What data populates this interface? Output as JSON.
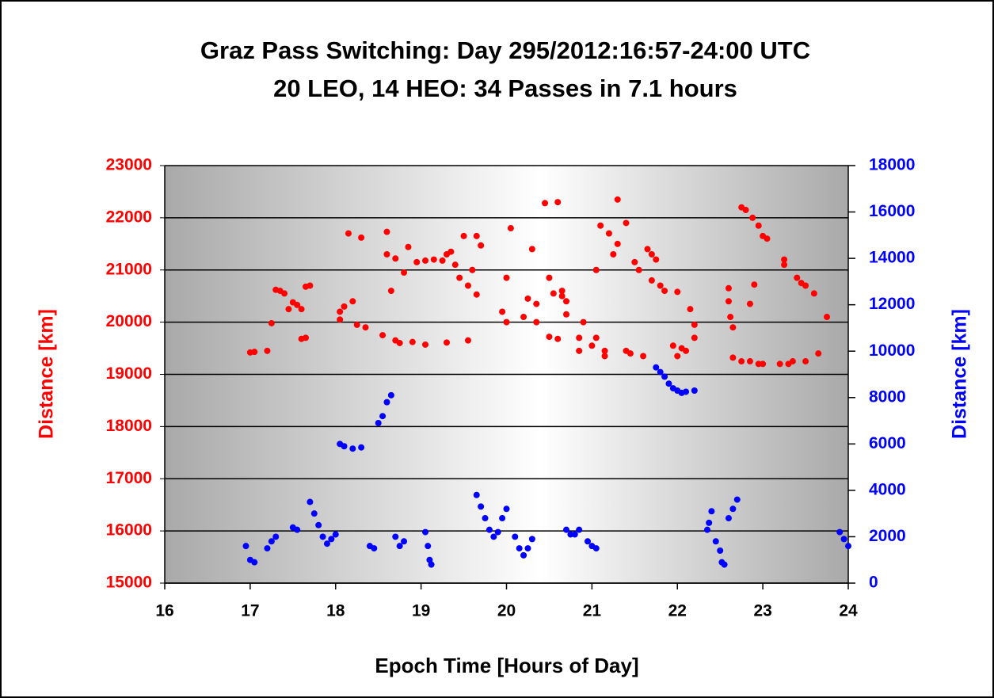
{
  "chart_data": {
    "type": "scatter",
    "title": "Graz Pass Switching: Day 295/2012:16:57-24:00 UTC",
    "subtitle": "20 LEO, 14 HEO: 34 Passes in 7.1 hours",
    "xlabel": "Epoch Time [Hours of Day]",
    "ylabel": "Distance [km]",
    "y2label": "Distance [km]",
    "ylabel_color": "#ff0000",
    "y2label_color": "#0000ff",
    "xlim": [
      16,
      24
    ],
    "xticks": [
      16,
      17,
      18,
      19,
      20,
      21,
      22,
      23,
      24
    ],
    "ylim": [
      15000,
      23000
    ],
    "yticks": [
      15000,
      16000,
      17000,
      18000,
      19000,
      20000,
      21000,
      22000,
      23000
    ],
    "y2lim": [
      0,
      18000
    ],
    "y2ticks": [
      0,
      2000,
      4000,
      6000,
      8000,
      10000,
      12000,
      14000,
      16000,
      18000
    ],
    "grid": true,
    "series": [
      {
        "color": "#ff0000",
        "axis": "y",
        "x": [
          17.0,
          17.05,
          17.2,
          17.25,
          17.3,
          17.35,
          17.4,
          17.45,
          17.5,
          17.55,
          17.6,
          17.65,
          17.6,
          17.65,
          17.7,
          18.05,
          18.05,
          18.1,
          18.15,
          18.2,
          18.25,
          18.3,
          18.35,
          18.55,
          18.6,
          18.6,
          18.7,
          18.7,
          18.65,
          18.75,
          18.8,
          18.85,
          18.9,
          18.95,
          19.05,
          19.05,
          19.15,
          19.25,
          19.3,
          19.35,
          19.4,
          19.3,
          19.45,
          19.5,
          19.55,
          19.55,
          19.6,
          19.65,
          19.65,
          19.7,
          19.95,
          20.0,
          20.0,
          20.05,
          20.2,
          20.25,
          20.3,
          20.35,
          20.35,
          20.45,
          20.5,
          20.5,
          20.55,
          20.6,
          20.6,
          20.65,
          20.65,
          20.7,
          20.7,
          20.85,
          20.9,
          20.85,
          21.0,
          21.05,
          21.05,
          21.1,
          21.15,
          21.15,
          21.2,
          21.25,
          21.3,
          21.3,
          21.4,
          21.4,
          21.45,
          21.5,
          21.55,
          21.6,
          21.65,
          21.7,
          21.7,
          21.75,
          21.8,
          21.85,
          21.95,
          22.0,
          22.0,
          22.05,
          22.1,
          22.15,
          22.2,
          22.2,
          22.6,
          22.6,
          22.62,
          22.65,
          22.65,
          22.75,
          22.75,
          22.8,
          22.85,
          22.85,
          22.88,
          22.95,
          22.95,
          23.0,
          23.0,
          23.05,
          23.2,
          23.25,
          23.25,
          23.3,
          23.35,
          23.4,
          23.45,
          23.5,
          23.5,
          23.6,
          23.65,
          23.75,
          22.9
        ],
        "values": [
          19420,
          19430,
          19450,
          19980,
          20620,
          20600,
          20550,
          20250,
          20380,
          20330,
          20250,
          20680,
          19680,
          19700,
          20700,
          20050,
          20200,
          20300,
          21700,
          20400,
          19950,
          21620,
          19900,
          19750,
          21300,
          21730,
          21220,
          19650,
          20600,
          19600,
          20950,
          21440,
          19620,
          21150,
          19570,
          21180,
          21200,
          21180,
          21300,
          21350,
          21100,
          19610,
          20850,
          21650,
          19650,
          20700,
          21000,
          21650,
          20530,
          21470,
          20200,
          20000,
          20850,
          21800,
          20100,
          20450,
          21400,
          20000,
          20350,
          22280,
          20850,
          19720,
          20550,
          22300,
          19680,
          20500,
          20600,
          20400,
          20150,
          19700,
          20000,
          19450,
          19550,
          21000,
          19700,
          21850,
          19450,
          19350,
          21700,
          21300,
          22350,
          21500,
          19450,
          21900,
          19400,
          21150,
          21000,
          19350,
          21400,
          21300,
          20800,
          21200,
          20700,
          20600,
          19550,
          20580,
          19350,
          19500,
          19450,
          20250,
          19950,
          19700,
          20650,
          20400,
          20100,
          19900,
          19320,
          19250,
          22200,
          22150,
          19250,
          20350,
          22000,
          21850,
          19200,
          21650,
          19200,
          21600,
          19200,
          21200,
          21100,
          19200,
          19250,
          20850,
          20750,
          19250,
          20700,
          20550,
          19400,
          20100,
          20720
        ]
      },
      {
        "color": "#0000ff",
        "axis": "y2",
        "x": [
          16.95,
          17.0,
          17.05,
          17.2,
          17.25,
          17.3,
          17.5,
          17.55,
          17.7,
          17.75,
          17.8,
          17.85,
          17.9,
          17.95,
          18.0,
          18.05,
          18.1,
          18.2,
          18.3,
          18.5,
          18.55,
          18.6,
          18.65,
          18.4,
          18.45,
          18.7,
          18.75,
          18.8,
          19.05,
          19.08,
          19.1,
          19.12,
          19.65,
          19.7,
          19.75,
          19.8,
          19.85,
          19.9,
          19.95,
          20.0,
          20.1,
          20.15,
          20.2,
          20.25,
          20.3,
          20.7,
          20.75,
          20.8,
          20.85,
          20.95,
          21.0,
          21.05,
          21.75,
          21.8,
          21.85,
          21.9,
          21.95,
          22.0,
          22.05,
          22.1,
          22.2,
          22.35,
          22.37,
          22.4,
          22.45,
          22.5,
          22.52,
          22.55,
          22.6,
          22.65,
          22.7,
          23.9,
          23.95,
          24.0
        ],
        "values": [
          1600,
          1000,
          900,
          1500,
          1800,
          2000,
          2400,
          2300,
          3500,
          3000,
          2500,
          2000,
          1700,
          1900,
          2100,
          6000,
          5900,
          5800,
          5850,
          6900,
          7200,
          7800,
          8100,
          1600,
          1500,
          2000,
          1600,
          1800,
          2200,
          1600,
          1000,
          800,
          3800,
          3300,
          2800,
          2300,
          2000,
          2200,
          2800,
          3200,
          2000,
          1500,
          1200,
          1500,
          1900,
          2300,
          2100,
          2100,
          2300,
          1800,
          1600,
          1500,
          9300,
          9100,
          8900,
          8600,
          8400,
          8300,
          8200,
          8250,
          8300,
          2300,
          2600,
          3100,
          1800,
          1400,
          900,
          800,
          2800,
          3200,
          3600,
          2200,
          1900,
          1600
        ]
      }
    ]
  }
}
